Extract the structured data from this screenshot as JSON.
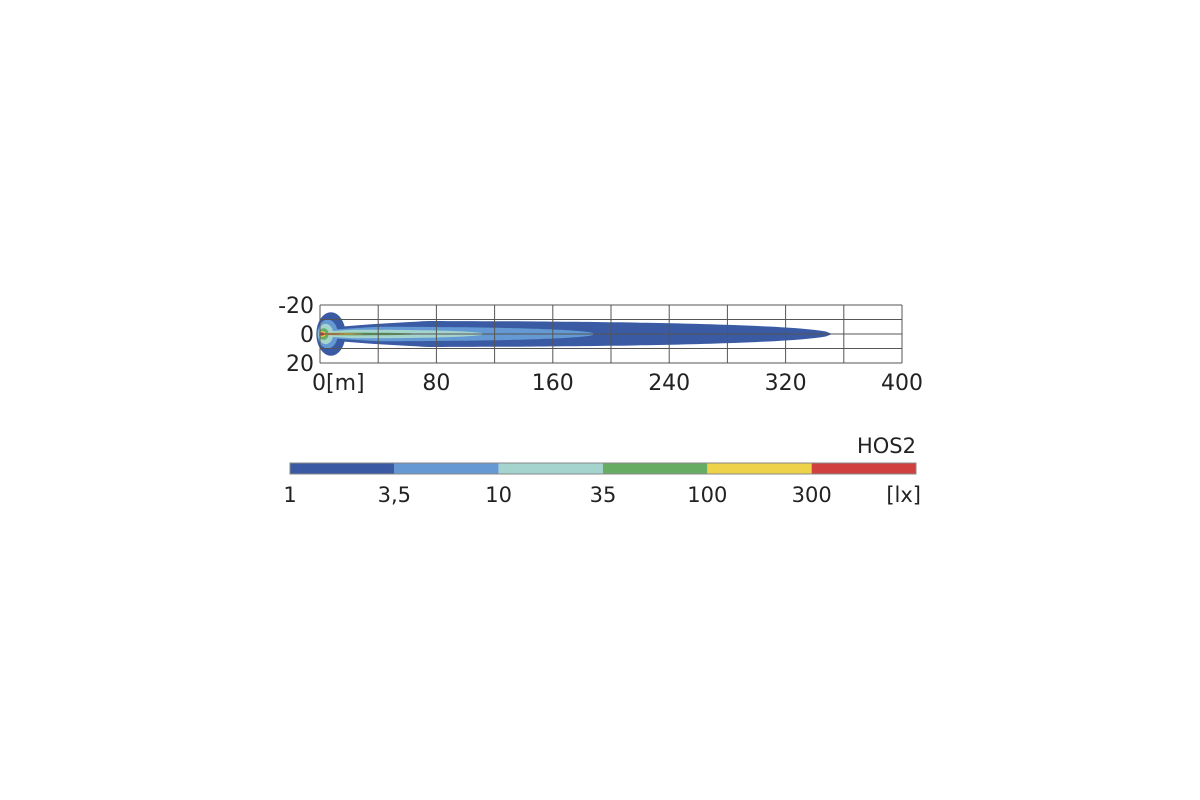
{
  "chart_data": {
    "type": "heatmap",
    "title": "HOS2",
    "xlabel": "[m]",
    "unit": "[lx]",
    "xlim": [
      0,
      400
    ],
    "ylim": [
      -20,
      20
    ],
    "x_ticks": [
      "0[m]",
      "80",
      "160",
      "240",
      "320",
      "400"
    ],
    "x_tick_values": [
      0,
      80,
      160,
      240,
      320,
      400
    ],
    "y_ticks": [
      "-20",
      "0",
      "20"
    ],
    "y_tick_values": [
      -20,
      0,
      20
    ],
    "grid": true,
    "grid_x_step": 40,
    "grid_y_step": 10,
    "legend": {
      "labels": [
        "1",
        "3,5",
        "10",
        "35",
        "100",
        "300"
      ],
      "colors": [
        "#3a5ba4",
        "#6499d3",
        "#a5d3ce",
        "#67ac63",
        "#eed24a",
        "#d0403f"
      ]
    },
    "contours": [
      {
        "lux": 1,
        "color": "#3a5ba4",
        "reach_m": 352,
        "half_width_m": 9,
        "near_half_width_m": 15
      },
      {
        "lux": 3.5,
        "color": "#6499d3",
        "reach_m": 189,
        "half_width_m": 5,
        "near_half_width_m": 10
      },
      {
        "lux": 10,
        "color": "#a5d3ce",
        "reach_m": 113,
        "half_width_m": 3,
        "near_half_width_m": 7
      },
      {
        "lux": 35,
        "color": "#67ac63",
        "reach_m": 67,
        "half_width_m": 1,
        "near_half_width_m": 4
      },
      {
        "lux": 100,
        "color": "#eed24a",
        "reach_m": 32,
        "half_width_m": 0.8,
        "near_half_width_m": 2
      },
      {
        "lux": 300,
        "color": "#d0403f",
        "reach_m": 22,
        "half_width_m": 0.5,
        "near_half_width_m": 1.2
      }
    ]
  }
}
